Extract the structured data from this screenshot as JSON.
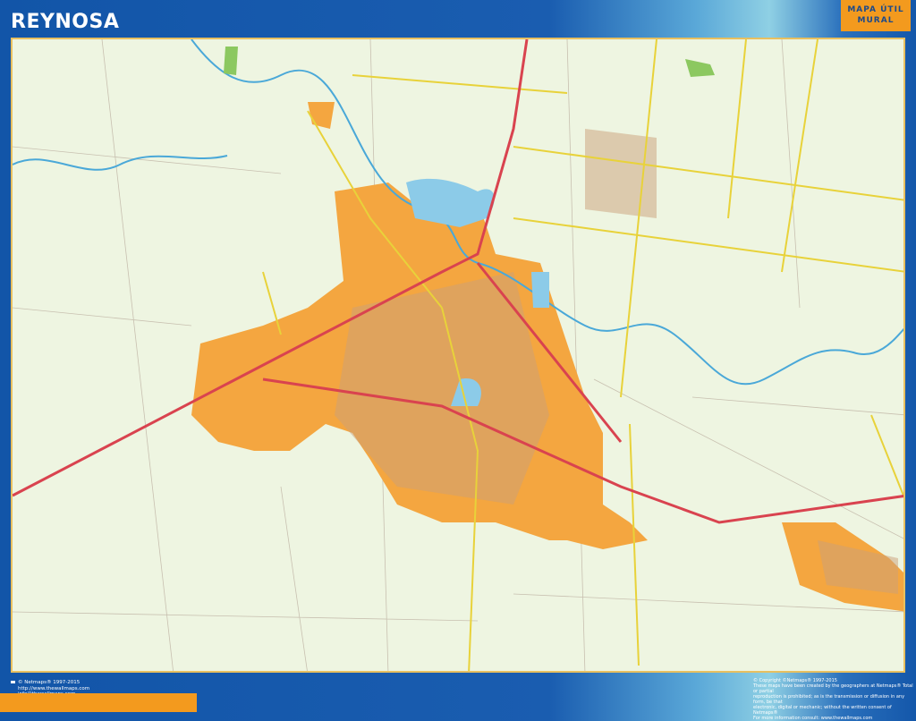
{
  "title": "REYNOSA",
  "badge": {
    "line1": "MAPA ÚTIL",
    "line2": "MURAL"
  },
  "footer_left": [
    "© Netmaps® 1997-2015",
    "http://www.thewallmaps.com",
    "info@thewallmaps.com"
  ],
  "footer_right": [
    "© Copyright ©Netmaps® 1997-2015",
    "These maps have been created by the geographers at Netmaps® Total or partial",
    "reproduction is prohibited; as is the transmission or diffusion in any form, be that",
    "electronic, digital or mechanic; without the written consent of Netmaps®",
    "For more information consult: www.thewallmaps.com"
  ],
  "colors": {
    "frame": "#1a5db0",
    "accent": "#f39a1e",
    "urban": "#f4a640",
    "water": "#8ccbe8",
    "land": "#eef5e1",
    "highway": "#d9434f",
    "main_road": "#e8d23a"
  }
}
